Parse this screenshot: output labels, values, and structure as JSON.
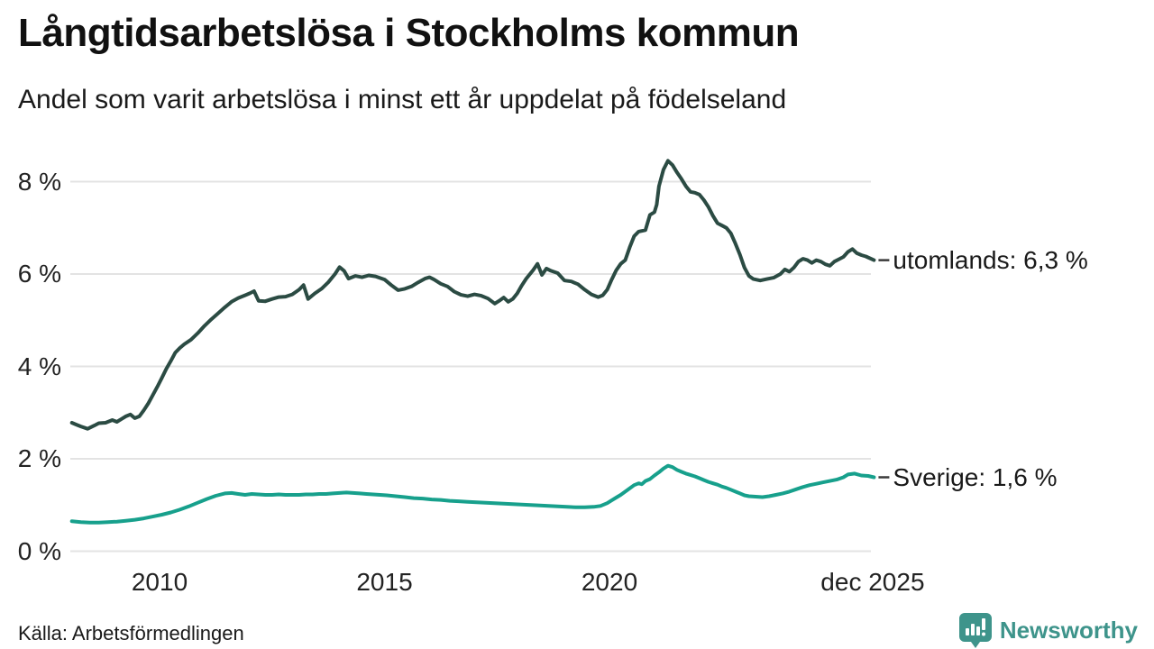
{
  "header": {
    "title": "Långtidsarbetslösa i Stockholms kommun",
    "subtitle": "Andel som varit arbetslösa i minst ett år uppdelat på födelseland"
  },
  "footer": {
    "source": "Källa: Arbetsförmedlingen",
    "brand": "Newsworthy"
  },
  "colors": {
    "grid": "#e3e3e3",
    "connector": "#3a3a3a",
    "axis_text": "#222222",
    "brand_teal": "#3e948b",
    "series_utomlands": "#2b4b43",
    "series_sverige": "#17a08c"
  },
  "chart_data": {
    "type": "line",
    "title": "Långtidsarbetslösa i Stockholms kommun",
    "subtitle": "Andel som varit arbetslösa i minst ett år uppdelat på födelseland",
    "source": "Källa: Arbetsförmedlingen",
    "grid": true,
    "legend_position": "right-end-labels",
    "xlabel": "",
    "ylabel": "",
    "x_axis": {
      "range": [
        2008.0,
        2026.1
      ],
      "ticks": [
        {
          "label": "2010",
          "year": 2010
        },
        {
          "label": "2015",
          "year": 2015
        },
        {
          "label": "2020",
          "year": 2020
        },
        {
          "label": "dec 2025",
          "year": 2025.85
        }
      ]
    },
    "y_axis": {
      "unit": "%",
      "range": [
        0,
        8.8
      ],
      "values": [
        0,
        2,
        4,
        6,
        8
      ],
      "ticks": [
        "0 %",
        "2 %",
        "4 %",
        "6 %",
        "8 %"
      ]
    },
    "series": [
      {
        "name": "utomlands",
        "end_label": "utomlands: 6,3 %",
        "last_value": 6.3,
        "color": "#2b4b43",
        "points": [
          [
            2008.05,
            2.78
          ],
          [
            2008.15,
            2.74
          ],
          [
            2008.25,
            2.7
          ],
          [
            2008.4,
            2.65
          ],
          [
            2008.55,
            2.72
          ],
          [
            2008.65,
            2.77
          ],
          [
            2008.8,
            2.78
          ],
          [
            2008.95,
            2.84
          ],
          [
            2009.05,
            2.8
          ],
          [
            2009.15,
            2.86
          ],
          [
            2009.25,
            2.92
          ],
          [
            2009.35,
            2.96
          ],
          [
            2009.45,
            2.88
          ],
          [
            2009.55,
            2.92
          ],
          [
            2009.65,
            3.05
          ],
          [
            2009.75,
            3.2
          ],
          [
            2009.85,
            3.38
          ],
          [
            2009.95,
            3.56
          ],
          [
            2010.05,
            3.75
          ],
          [
            2010.15,
            3.95
          ],
          [
            2010.25,
            4.12
          ],
          [
            2010.35,
            4.3
          ],
          [
            2010.45,
            4.4
          ],
          [
            2010.55,
            4.48
          ],
          [
            2010.7,
            4.58
          ],
          [
            2010.85,
            4.72
          ],
          [
            2011.0,
            4.88
          ],
          [
            2011.15,
            5.02
          ],
          [
            2011.3,
            5.15
          ],
          [
            2011.45,
            5.28
          ],
          [
            2011.6,
            5.4
          ],
          [
            2011.75,
            5.48
          ],
          [
            2011.9,
            5.54
          ],
          [
            2012.0,
            5.58
          ],
          [
            2012.1,
            5.63
          ],
          [
            2012.2,
            5.42
          ],
          [
            2012.35,
            5.41
          ],
          [
            2012.5,
            5.46
          ],
          [
            2012.65,
            5.5
          ],
          [
            2012.8,
            5.51
          ],
          [
            2012.95,
            5.56
          ],
          [
            2013.1,
            5.66
          ],
          [
            2013.2,
            5.76
          ],
          [
            2013.3,
            5.46
          ],
          [
            2013.45,
            5.58
          ],
          [
            2013.6,
            5.68
          ],
          [
            2013.75,
            5.82
          ],
          [
            2013.9,
            6.0
          ],
          [
            2014.0,
            6.15
          ],
          [
            2014.1,
            6.07
          ],
          [
            2014.2,
            5.9
          ],
          [
            2014.35,
            5.96
          ],
          [
            2014.5,
            5.93
          ],
          [
            2014.65,
            5.97
          ],
          [
            2014.8,
            5.95
          ],
          [
            2015.0,
            5.88
          ],
          [
            2015.15,
            5.76
          ],
          [
            2015.3,
            5.65
          ],
          [
            2015.45,
            5.68
          ],
          [
            2015.6,
            5.73
          ],
          [
            2015.75,
            5.82
          ],
          [
            2015.9,
            5.9
          ],
          [
            2016.0,
            5.93
          ],
          [
            2016.1,
            5.88
          ],
          [
            2016.25,
            5.79
          ],
          [
            2016.4,
            5.73
          ],
          [
            2016.55,
            5.62
          ],
          [
            2016.7,
            5.55
          ],
          [
            2016.85,
            5.52
          ],
          [
            2017.0,
            5.56
          ],
          [
            2017.15,
            5.53
          ],
          [
            2017.3,
            5.47
          ],
          [
            2017.45,
            5.36
          ],
          [
            2017.55,
            5.42
          ],
          [
            2017.65,
            5.49
          ],
          [
            2017.75,
            5.4
          ],
          [
            2017.85,
            5.46
          ],
          [
            2017.95,
            5.58
          ],
          [
            2018.05,
            5.75
          ],
          [
            2018.15,
            5.9
          ],
          [
            2018.3,
            6.08
          ],
          [
            2018.4,
            6.22
          ],
          [
            2018.5,
            5.98
          ],
          [
            2018.6,
            6.12
          ],
          [
            2018.7,
            6.07
          ],
          [
            2018.85,
            6.02
          ],
          [
            2019.0,
            5.86
          ],
          [
            2019.15,
            5.84
          ],
          [
            2019.3,
            5.78
          ],
          [
            2019.45,
            5.66
          ],
          [
            2019.6,
            5.56
          ],
          [
            2019.75,
            5.5
          ],
          [
            2019.85,
            5.54
          ],
          [
            2019.95,
            5.66
          ],
          [
            2020.05,
            5.88
          ],
          [
            2020.15,
            6.08
          ],
          [
            2020.25,
            6.22
          ],
          [
            2020.35,
            6.3
          ],
          [
            2020.45,
            6.58
          ],
          [
            2020.55,
            6.82
          ],
          [
            2020.65,
            6.92
          ],
          [
            2020.8,
            6.95
          ],
          [
            2020.9,
            7.28
          ],
          [
            2021.0,
            7.34
          ],
          [
            2021.05,
            7.5
          ],
          [
            2021.1,
            7.9
          ],
          [
            2021.2,
            8.26
          ],
          [
            2021.3,
            8.45
          ],
          [
            2021.4,
            8.36
          ],
          [
            2021.5,
            8.2
          ],
          [
            2021.6,
            8.06
          ],
          [
            2021.7,
            7.9
          ],
          [
            2021.8,
            7.78
          ],
          [
            2021.9,
            7.76
          ],
          [
            2022.0,
            7.72
          ],
          [
            2022.1,
            7.6
          ],
          [
            2022.2,
            7.45
          ],
          [
            2022.3,
            7.26
          ],
          [
            2022.4,
            7.1
          ],
          [
            2022.5,
            7.05
          ],
          [
            2022.6,
            7.0
          ],
          [
            2022.7,
            6.88
          ],
          [
            2022.8,
            6.66
          ],
          [
            2022.9,
            6.42
          ],
          [
            2023.0,
            6.14
          ],
          [
            2023.1,
            5.96
          ],
          [
            2023.2,
            5.89
          ],
          [
            2023.35,
            5.86
          ],
          [
            2023.5,
            5.89
          ],
          [
            2023.65,
            5.92
          ],
          [
            2023.8,
            6.0
          ],
          [
            2023.9,
            6.1
          ],
          [
            2024.0,
            6.05
          ],
          [
            2024.1,
            6.14
          ],
          [
            2024.2,
            6.27
          ],
          [
            2024.3,
            6.33
          ],
          [
            2024.4,
            6.3
          ],
          [
            2024.5,
            6.24
          ],
          [
            2024.6,
            6.3
          ],
          [
            2024.7,
            6.27
          ],
          [
            2024.8,
            6.21
          ],
          [
            2024.9,
            6.18
          ],
          [
            2025.0,
            6.27
          ],
          [
            2025.1,
            6.32
          ],
          [
            2025.2,
            6.37
          ],
          [
            2025.3,
            6.48
          ],
          [
            2025.4,
            6.54
          ],
          [
            2025.5,
            6.45
          ],
          [
            2025.6,
            6.41
          ],
          [
            2025.7,
            6.38
          ],
          [
            2025.88,
            6.3
          ]
        ]
      },
      {
        "name": "Sverige",
        "end_label": "Sverige: 1,6 %",
        "last_value": 1.6,
        "color": "#17a08c",
        "points": [
          [
            2008.05,
            0.65
          ],
          [
            2008.25,
            0.63
          ],
          [
            2008.45,
            0.62
          ],
          [
            2008.65,
            0.62
          ],
          [
            2008.85,
            0.63
          ],
          [
            2009.05,
            0.64
          ],
          [
            2009.25,
            0.66
          ],
          [
            2009.45,
            0.68
          ],
          [
            2009.65,
            0.71
          ],
          [
            2009.85,
            0.75
          ],
          [
            2010.05,
            0.79
          ],
          [
            2010.25,
            0.84
          ],
          [
            2010.45,
            0.9
          ],
          [
            2010.65,
            0.97
          ],
          [
            2010.85,
            1.05
          ],
          [
            2011.05,
            1.13
          ],
          [
            2011.25,
            1.2
          ],
          [
            2011.45,
            1.25
          ],
          [
            2011.6,
            1.26
          ],
          [
            2011.75,
            1.24
          ],
          [
            2011.9,
            1.22
          ],
          [
            2012.05,
            1.24
          ],
          [
            2012.2,
            1.23
          ],
          [
            2012.35,
            1.22
          ],
          [
            2012.5,
            1.22
          ],
          [
            2012.65,
            1.23
          ],
          [
            2012.8,
            1.22
          ],
          [
            2012.95,
            1.22
          ],
          [
            2013.1,
            1.22
          ],
          [
            2013.25,
            1.23
          ],
          [
            2013.4,
            1.23
          ],
          [
            2013.55,
            1.24
          ],
          [
            2013.7,
            1.24
          ],
          [
            2013.85,
            1.25
          ],
          [
            2014.0,
            1.26
          ],
          [
            2014.15,
            1.27
          ],
          [
            2014.3,
            1.26
          ],
          [
            2014.45,
            1.25
          ],
          [
            2014.6,
            1.24
          ],
          [
            2014.75,
            1.23
          ],
          [
            2014.9,
            1.22
          ],
          [
            2015.05,
            1.21
          ],
          [
            2015.25,
            1.19
          ],
          [
            2015.45,
            1.17
          ],
          [
            2015.65,
            1.15
          ],
          [
            2015.85,
            1.14
          ],
          [
            2016.05,
            1.12
          ],
          [
            2016.25,
            1.11
          ],
          [
            2016.45,
            1.09
          ],
          [
            2016.65,
            1.08
          ],
          [
            2016.85,
            1.07
          ],
          [
            2017.05,
            1.06
          ],
          [
            2017.25,
            1.05
          ],
          [
            2017.45,
            1.04
          ],
          [
            2017.65,
            1.03
          ],
          [
            2017.85,
            1.02
          ],
          [
            2018.05,
            1.01
          ],
          [
            2018.25,
            1.0
          ],
          [
            2018.45,
            0.99
          ],
          [
            2018.65,
            0.98
          ],
          [
            2018.85,
            0.97
          ],
          [
            2019.05,
            0.96
          ],
          [
            2019.25,
            0.95
          ],
          [
            2019.45,
            0.95
          ],
          [
            2019.65,
            0.96
          ],
          [
            2019.8,
            0.98
          ],
          [
            2019.95,
            1.04
          ],
          [
            2020.05,
            1.1
          ],
          [
            2020.15,
            1.16
          ],
          [
            2020.25,
            1.22
          ],
          [
            2020.35,
            1.29
          ],
          [
            2020.45,
            1.36
          ],
          [
            2020.55,
            1.43
          ],
          [
            2020.65,
            1.47
          ],
          [
            2020.72,
            1.45
          ],
          [
            2020.8,
            1.52
          ],
          [
            2020.9,
            1.56
          ],
          [
            2021.0,
            1.64
          ],
          [
            2021.1,
            1.71
          ],
          [
            2021.2,
            1.79
          ],
          [
            2021.3,
            1.85
          ],
          [
            2021.4,
            1.82
          ],
          [
            2021.5,
            1.76
          ],
          [
            2021.6,
            1.72
          ],
          [
            2021.7,
            1.68
          ],
          [
            2021.8,
            1.65
          ],
          [
            2021.9,
            1.62
          ],
          [
            2022.0,
            1.58
          ],
          [
            2022.1,
            1.54
          ],
          [
            2022.2,
            1.5
          ],
          [
            2022.3,
            1.47
          ],
          [
            2022.4,
            1.44
          ],
          [
            2022.5,
            1.4
          ],
          [
            2022.6,
            1.37
          ],
          [
            2022.7,
            1.33
          ],
          [
            2022.8,
            1.29
          ],
          [
            2022.9,
            1.25
          ],
          [
            2023.0,
            1.21
          ],
          [
            2023.1,
            1.19
          ],
          [
            2023.25,
            1.18
          ],
          [
            2023.4,
            1.17
          ],
          [
            2023.55,
            1.19
          ],
          [
            2023.7,
            1.22
          ],
          [
            2023.85,
            1.25
          ],
          [
            2024.0,
            1.29
          ],
          [
            2024.15,
            1.34
          ],
          [
            2024.3,
            1.39
          ],
          [
            2024.45,
            1.43
          ],
          [
            2024.6,
            1.46
          ],
          [
            2024.75,
            1.49
          ],
          [
            2024.9,
            1.52
          ],
          [
            2025.05,
            1.55
          ],
          [
            2025.2,
            1.6
          ],
          [
            2025.3,
            1.66
          ],
          [
            2025.45,
            1.68
          ],
          [
            2025.6,
            1.64
          ],
          [
            2025.75,
            1.63
          ],
          [
            2025.88,
            1.6
          ]
        ]
      }
    ]
  }
}
